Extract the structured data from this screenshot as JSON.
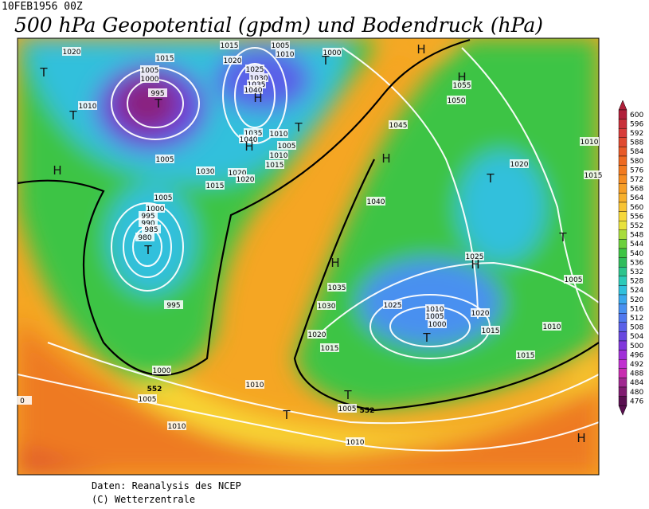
{
  "header": {
    "date": "10FEB1956 00Z",
    "title": "500 hPa Geopotential (gpdm) und Bodendruck (hPa)"
  },
  "colorbar": {
    "levels": [
      600,
      596,
      592,
      588,
      584,
      580,
      576,
      572,
      568,
      564,
      560,
      556,
      552,
      548,
      544,
      540,
      536,
      532,
      528,
      524,
      520,
      516,
      512,
      508,
      504,
      500,
      496,
      492,
      488,
      484,
      480,
      476
    ],
    "colors": [
      "#b0203a",
      "#c8303a",
      "#d83c3a",
      "#e04a30",
      "#e85a28",
      "#ee6a22",
      "#f27a20",
      "#f58c22",
      "#f69e26",
      "#f7b02c",
      "#f8c434",
      "#f6d83a",
      "#e8e23c",
      "#a8dc3c",
      "#6cd03c",
      "#3ec444",
      "#30bc5c",
      "#2cc48c",
      "#2ccab8",
      "#30c0dc",
      "#3aa8ec",
      "#4890f0",
      "#5078ee",
      "#5a60e8",
      "#6848e0",
      "#8038dc",
      "#a030d8",
      "#c030d0",
      "#c82cb0",
      "#a02890",
      "#801c70",
      "#5a1050"
    ]
  },
  "map": {
    "isobar_labels": [
      "1020",
      "1015",
      "1005",
      "1000",
      "995",
      "1010",
      "1005",
      "1015",
      "1020",
      "1025",
      "1030",
      "1035",
      "1040",
      "1035",
      "1040",
      "1010",
      "1005",
      "1010",
      "1015",
      "1030",
      "1020",
      "1020",
      "1015",
      "1005",
      "1010",
      "1000",
      "1055",
      "1050",
      "1045",
      "1040",
      "1020",
      "1005",
      "1000",
      "995",
      "990",
      "985",
      "980",
      "995",
      "1000",
      "1005",
      "1010",
      "1010",
      "1010",
      "1035",
      "1030",
      "1025",
      "1020",
      "1015",
      "1010",
      "1005",
      "1000",
      "1025",
      "1020",
      "1015",
      "1010",
      "1005",
      "1015",
      "1005",
      "1010",
      "1015",
      "0"
    ],
    "contour_labels": [
      "552",
      "552"
    ],
    "pressure_systems": [
      "T",
      "T",
      "H",
      "T",
      "H",
      "H",
      "T",
      "T",
      "H",
      "H",
      "H",
      "T",
      "T",
      "H",
      "H",
      "T",
      "T",
      "T",
      "T",
      "H"
    ]
  },
  "footer": {
    "source": "Daten: Reanalysis des NCEP",
    "copyright": "(C) Wetterzentrale"
  }
}
